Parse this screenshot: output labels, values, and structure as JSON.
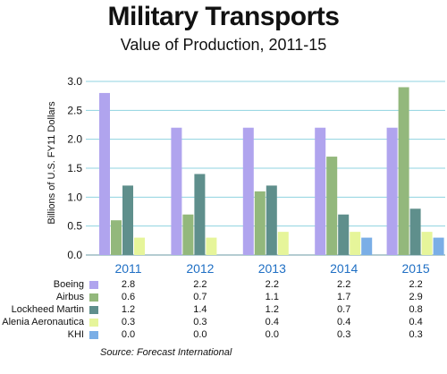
{
  "chart_data": {
    "type": "bar",
    "title": "Military Transports",
    "subtitle": "Value of Production, 2011-15",
    "ylabel": "Billions of U.S. FY11 Dollars",
    "xlabel": "",
    "ylim": [
      0,
      3.0
    ],
    "yticks": [
      "0.0",
      "0.5",
      "1.0",
      "1.5",
      "2.0",
      "2.5",
      "3.0"
    ],
    "grid": true,
    "categories": [
      "2011",
      "2012",
      "2013",
      "2014",
      "2015"
    ],
    "series": [
      {
        "name": "Boeing",
        "color": "#b0a4ee",
        "values": [
          2.8,
          2.2,
          2.2,
          2.2,
          2.2
        ],
        "labels": [
          "2.8",
          "2.2",
          "2.2",
          "2.2",
          "2.2"
        ]
      },
      {
        "name": "Airbus",
        "color": "#93b87c",
        "values": [
          0.6,
          0.7,
          1.1,
          1.7,
          2.9
        ],
        "labels": [
          "0.6",
          "0.7",
          "1.1",
          "1.7",
          "2.9"
        ]
      },
      {
        "name": "Lockheed Martin",
        "color": "#5f8f8c",
        "values": [
          1.2,
          1.4,
          1.2,
          0.7,
          0.8
        ],
        "labels": [
          "1.2",
          "1.4",
          "1.2",
          "0.7",
          "0.8"
        ]
      },
      {
        "name": "Alenia Aeronautica",
        "color": "#e6f59a",
        "values": [
          0.3,
          0.3,
          0.4,
          0.4,
          0.4
        ],
        "labels": [
          "0.3",
          "0.3",
          "0.4",
          "0.4",
          "0.4"
        ]
      },
      {
        "name": "KHI",
        "color": "#7aaee6",
        "values": [
          0.0,
          0.0,
          0.0,
          0.3,
          0.3
        ],
        "labels": [
          "0.0",
          "0.0",
          "0.0",
          "0.3",
          "0.3"
        ]
      }
    ],
    "colors": {
      "grid": "#8fd3e0",
      "category_label": "#1f6fc4"
    }
  },
  "source": "Source:  Forecast International"
}
